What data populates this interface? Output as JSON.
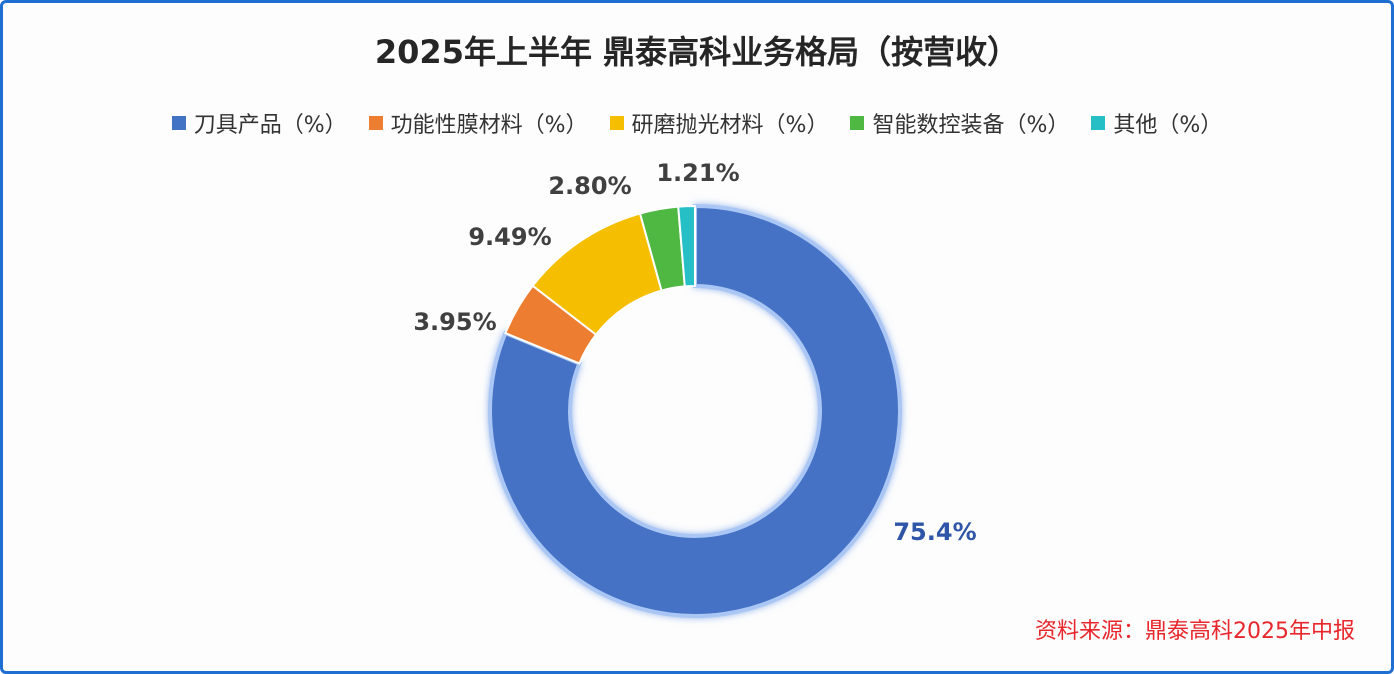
{
  "chart_data": {
    "type": "donut",
    "title": "2025年上半年 鼎泰高科业务格局（按营收）",
    "categories": [
      "刀具产品（%）",
      "功能性膜材料（%）",
      "研磨抛光材料（%）",
      "智能数控装备（%）",
      "其他（%）"
    ],
    "values": [
      75.4,
      3.95,
      9.49,
      2.8,
      1.21
    ],
    "value_labels": [
      "75.4%",
      "3.95%",
      "9.49%",
      "2.80%",
      "1.21%"
    ],
    "colors": [
      "#4472c4",
      "#ed7d31",
      "#f5bf00",
      "#4fb843",
      "#26bfc6"
    ],
    "legend": "top",
    "source": "资料来源：鼎泰高科2025年中报"
  }
}
